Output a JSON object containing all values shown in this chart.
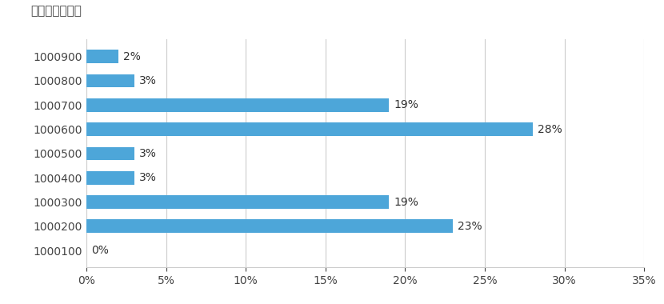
{
  "categories": [
    "1000900",
    "1000800",
    "1000700",
    "1000600",
    "1000500",
    "1000400",
    "1000300",
    "1000200",
    "1000100"
  ],
  "values": [
    2,
    3,
    19,
    28,
    3,
    3,
    19,
    23,
    0
  ],
  "bar_color": "#4da6d9",
  "ylabel_text": "（運用コース）",
  "xlim": [
    0,
    35
  ],
  "xticks": [
    0,
    5,
    10,
    15,
    20,
    25,
    30,
    35
  ],
  "background_color": "#ffffff",
  "label_fontsize": 10,
  "tick_fontsize": 10,
  "bar_height": 0.55,
  "title_fontsize": 11
}
